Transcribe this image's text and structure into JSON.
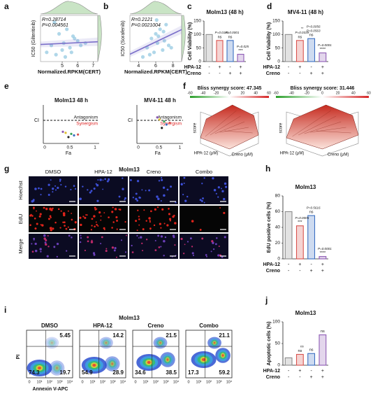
{
  "panel_labels": [
    "a",
    "b",
    "c",
    "d",
    "e",
    "f",
    "g",
    "h",
    "i",
    "j"
  ],
  "chart_data": [
    {
      "type": "scatter",
      "x_label": "Normalized.RPKM(CERT)",
      "y_label": "IC50 (Gilteritinib)",
      "annotations": [
        "R=0.28714",
        "P=0.004561"
      ],
      "color": "#8fc6e0",
      "line_color": "#7b6fc9",
      "xlim": [
        3.6,
        7.3
      ],
      "ylim": [
        0,
        100
      ],
      "xticks": [
        5,
        6,
        7
      ],
      "x": [
        4.0,
        4.3,
        4.6,
        4.8,
        5.0,
        5.1,
        5.3,
        5.5,
        5.6,
        5.8,
        6.0,
        6.2,
        6.5,
        4.5,
        5.2,
        5.7
      ],
      "y": [
        20,
        35,
        15,
        60,
        25,
        40,
        70,
        30,
        20,
        50,
        45,
        35,
        40,
        85,
        10,
        55
      ]
    },
    {
      "type": "scatter",
      "x_label": "Normalized.RPKM(CERT)",
      "y_label": "IC50 (Sorafenib)",
      "annotations": [
        "R=0.2121",
        "P=0.0021004"
      ],
      "color": "#8fc6e0",
      "line_color": "#7b6fc9",
      "xlim": [
        3,
        9
      ],
      "ylim": [
        0,
        100
      ],
      "xticks": [
        4,
        6,
        8
      ],
      "x": [
        4.5,
        5,
        5.5,
        5.8,
        6,
        6.2,
        6.5,
        6.8,
        7,
        7.2,
        7.5,
        5.3,
        6.3,
        6.9,
        7.8,
        6.1
      ],
      "y": [
        10,
        30,
        50,
        20,
        60,
        40,
        70,
        25,
        45,
        80,
        35,
        15,
        55,
        65,
        30,
        90
      ]
    },
    {
      "type": "bar",
      "title": "Molm13 (48 h)",
      "y_label": "Cell Viability (%)",
      "categories": [
        null,
        null,
        null,
        null
      ],
      "values": [
        100,
        78,
        78,
        27
      ],
      "colors": [
        "#8c8c8c",
        "#d9534f",
        "#3b6fc2",
        "#8e5bb5"
      ],
      "ylim": [
        0,
        150
      ],
      "yticks": [
        0,
        50,
        100,
        150
      ],
      "rows": [
        {
          "label": "HPA-12",
          "signs": [
            "-",
            "+",
            "-",
            "+"
          ]
        },
        {
          "label": "Creno",
          "signs": [
            "-",
            "-",
            "+",
            "+"
          ]
        }
      ],
      "annotations": [
        "ns",
        "ns",
        "***",
        "P=0.0181",
        "P=0.0001",
        "P=0.025"
      ]
    },
    {
      "type": "bar",
      "title": "MV4-11 (48 h)",
      "y_label": "Cell Viability (%)",
      "categories": [
        null,
        null,
        null,
        null
      ],
      "values": [
        100,
        78,
        85,
        32
      ],
      "colors": [
        "#8c8c8c",
        "#d9534f",
        "#3b6fc2",
        "#8e5bb5"
      ],
      "ylim": [
        0,
        150
      ],
      "yticks": [
        0,
        50,
        100,
        150
      ],
      "rows": [
        {
          "label": "HPA-12",
          "signs": [
            "-",
            "+",
            "-",
            "+"
          ]
        },
        {
          "label": "Creno",
          "signs": [
            "-",
            "-",
            "+",
            "+"
          ]
        }
      ],
      "annotations": [
        "ns",
        "ns",
        "****",
        "P=0.0339",
        "P=0.0563",
        "P=0.0001",
        "**",
        "P=0.0056"
      ]
    },
    {
      "type": "bar",
      "title": "Molm13",
      "y_label": "EdU positive cells (%)",
      "categories": [
        null,
        null,
        null,
        null
      ],
      "values": [
        60,
        42,
        55,
        3
      ],
      "colors": [
        "#8c8c8c",
        "#d9534f",
        "#3b6fc2",
        "#8e5bb5"
      ],
      "ylim": [
        0,
        80
      ],
      "yticks": [
        0,
        20,
        40,
        60,
        80
      ],
      "rows": [
        {
          "label": "HPA-12",
          "signs": [
            "-",
            "+",
            "-",
            "+"
          ]
        },
        {
          "label": "Creno",
          "signs": [
            "-",
            "-",
            "+",
            "+"
          ]
        }
      ],
      "annotations": [
        "***",
        "ns",
        "****",
        "P=0.0005",
        "P=0.5616",
        "P=0.0001"
      ]
    },
    {
      "type": "bar",
      "title": "Molm13",
      "y_label": "Apoptotic cells (%)",
      "categories": [
        null,
        null,
        null,
        null
      ],
      "values": [
        17,
        25,
        27,
        70
      ],
      "colors": [
        "#8c8c8c",
        "#d9534f",
        "#3b6fc2",
        "#8e5bb5"
      ],
      "ylim": [
        0,
        100
      ],
      "yticks": [
        0,
        50,
        100
      ],
      "rows": [
        {
          "label": "HPA-12",
          "signs": [
            "-",
            "+",
            "-",
            "+"
          ]
        },
        {
          "label": "Creno",
          "signs": [
            "-",
            "-",
            "+",
            "+"
          ]
        }
      ],
      "annotations": [
        "ns",
        "ns",
        "ns",
        "ns"
      ]
    }
  ],
  "panel_e": {
    "titles": [
      "Molm13  48 h",
      "MV4-11  48 h"
    ],
    "y_label": "CI",
    "x_label": "Fa",
    "antagonism": "Antagonism",
    "synergism": "Synergism",
    "xticks": [
      "0",
      "0.5",
      "1"
    ]
  },
  "panel_f": {
    "scores": [
      "Bliss synergy score: 47.345",
      "Bliss synergy score: 31.446"
    ],
    "colorbar_ticks": [
      "-60",
      "-40",
      "-20",
      "0",
      "20",
      "40",
      "60"
    ],
    "z_label": "score",
    "x_label": "Creno (μM)",
    "y_label": "HPA-12 (μM)"
  },
  "panel_g": {
    "title": "Molm13",
    "columns": [
      "DMSO",
      "HPA-12",
      "Creno",
      "Combo"
    ],
    "rows": [
      "Hoechst",
      "EdU",
      "Merge"
    ]
  },
  "panel_i": {
    "title": "Molm13",
    "y_label": "PI",
    "x_label": "Annexin V-APC",
    "xticks": [
      "0",
      "10¹",
      "10²",
      "10³",
      "10⁴"
    ],
    "plots": [
      {
        "name": "DMSO",
        "q": [
          "5.45",
          "74.3",
          "19.7"
        ]
      },
      {
        "name": "HPA-12",
        "q": [
          "14.2",
          "54.9",
          "28.9"
        ]
      },
      {
        "name": "Creno",
        "q": [
          "21.5",
          "34.6",
          "38.5"
        ]
      },
      {
        "name": "Combo",
        "q": [
          "21.1",
          "17.3",
          "59.2"
        ]
      }
    ]
  }
}
